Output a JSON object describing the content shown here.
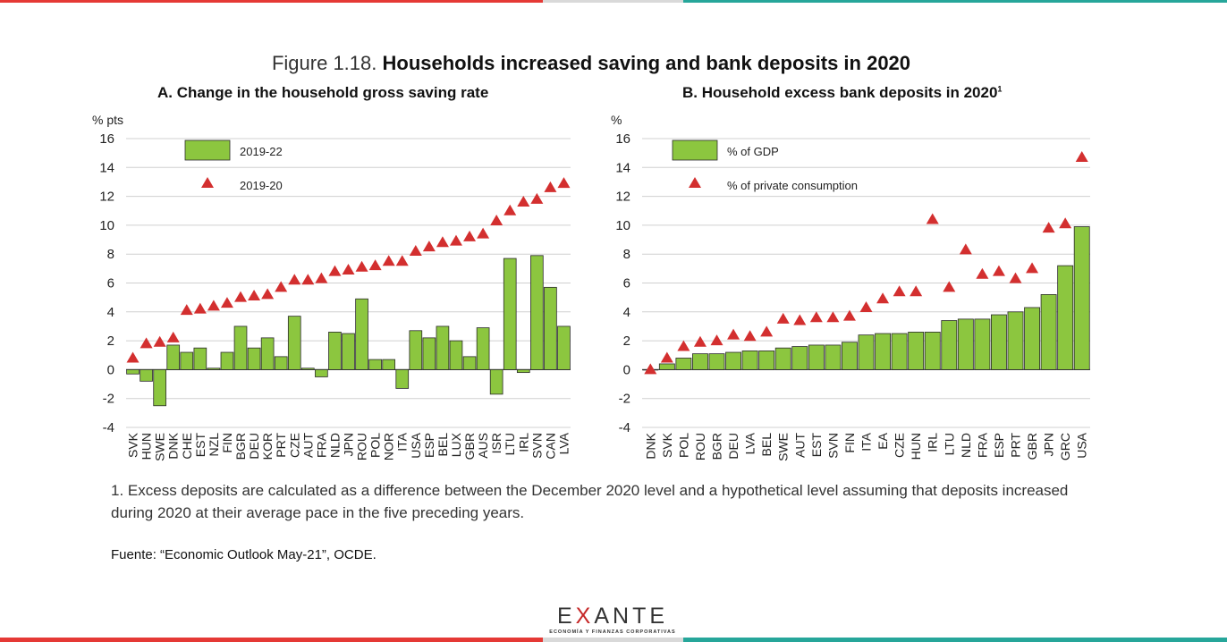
{
  "figure": {
    "label": "Figure 1.18.",
    "title": "Households increased saving and bank deposits in 2020",
    "note": "1. Excess deposits are calculated as a difference between the December 2020 level and a hypothetical level assuming that deposits increased during 2020 at their average pace in the five preceding years.",
    "source": "Fuente: “Economic Outlook May-21”, OCDE."
  },
  "logo": {
    "pre": "E",
    "x": "X",
    "post": "ANTE",
    "tagline": "ECONOMÍA Y FINANZAS CORPORATIVAS"
  },
  "colors": {
    "bar": "#8cc63f",
    "bar_stroke": "#2b2b2b",
    "marker": "#d32f2f",
    "grid": "#d0d0d0",
    "top_red": "#e53935",
    "top_teal": "#26a69a",
    "top_gray": "#d9d9d9"
  },
  "chart_data": [
    {
      "type": "bar",
      "title": "A. Change in the household gross saving rate",
      "ylabel": "% pts",
      "ylim": [
        -4,
        16
      ],
      "yticks": [
        -4,
        -2,
        0,
        2,
        4,
        6,
        8,
        10,
        12,
        14,
        16
      ],
      "legend": [
        "2019-22",
        "2019-20"
      ],
      "categories": [
        "SVK",
        "HUN",
        "SWE",
        "DNK",
        "CHE",
        "EST",
        "NZL",
        "FIN",
        "BGR",
        "DEU",
        "KOR",
        "PRT",
        "CZE",
        "AUT",
        "FRA",
        "NLD",
        "JPN",
        "ROU",
        "POL",
        "NOR",
        "ITA",
        "USA",
        "ESP",
        "BEL",
        "LUX",
        "GBR",
        "AUS",
        "ISR",
        "LTU",
        "IRL",
        "SVN",
        "CAN",
        "LVA"
      ],
      "series": [
        {
          "name": "2019-22",
          "kind": "bar",
          "values": [
            -0.3,
            -0.8,
            -2.5,
            1.7,
            1.2,
            1.5,
            0.1,
            1.2,
            3.0,
            1.5,
            2.2,
            0.9,
            3.7,
            0.1,
            -0.5,
            2.6,
            2.5,
            4.9,
            0.7,
            0.7,
            -1.3,
            2.7,
            2.2,
            3.0,
            2.0,
            0.9,
            2.9,
            -1.7,
            7.7,
            -0.2,
            7.9,
            5.7,
            3.0
          ]
        },
        {
          "name": "2019-20",
          "kind": "marker",
          "values": [
            0.8,
            1.8,
            1.9,
            2.2,
            4.1,
            4.2,
            4.4,
            4.6,
            5.0,
            5.1,
            5.2,
            5.7,
            6.2,
            6.2,
            6.3,
            6.8,
            6.9,
            7.1,
            7.2,
            7.5,
            7.5,
            8.2,
            8.5,
            8.8,
            8.9,
            9.2,
            9.4,
            10.3,
            11.0,
            11.6,
            11.8,
            12.6,
            12.9
          ]
        }
      ]
    },
    {
      "type": "bar",
      "title": "B. Household excess bank deposits in 2020",
      "title_sup": "1",
      "ylabel": "%",
      "ylim": [
        -4,
        16
      ],
      "yticks": [
        -4,
        -2,
        0,
        2,
        4,
        6,
        8,
        10,
        12,
        14,
        16
      ],
      "legend": [
        "% of GDP",
        "% of private consumption"
      ],
      "categories": [
        "DNK",
        "SVK",
        "POL",
        "ROU",
        "BGR",
        "DEU",
        "LVA",
        "BEL",
        "SWE",
        "AUT",
        "EST",
        "SVN",
        "FIN",
        "ITA",
        "EA",
        "CZE",
        "HUN",
        "IRL",
        "LTU",
        "NLD",
        "FRA",
        "ESP",
        "PRT",
        "GBR",
        "JPN",
        "GRC",
        "USA"
      ],
      "series": [
        {
          "name": "% of GDP",
          "kind": "bar",
          "values": [
            0.0,
            0.4,
            0.8,
            1.1,
            1.1,
            1.2,
            1.3,
            1.3,
            1.5,
            1.6,
            1.7,
            1.7,
            1.9,
            2.4,
            2.5,
            2.5,
            2.6,
            2.6,
            3.4,
            3.5,
            3.5,
            3.8,
            4.0,
            4.3,
            5.2,
            7.2,
            9.9
          ]
        },
        {
          "name": "% of private consumption",
          "kind": "marker",
          "values": [
            0.0,
            0.8,
            1.6,
            1.9,
            2.0,
            2.4,
            2.3,
            2.6,
            3.5,
            3.4,
            3.6,
            3.6,
            3.7,
            4.3,
            4.9,
            5.4,
            5.4,
            10.4,
            5.7,
            8.3,
            6.6,
            6.8,
            6.3,
            7.0,
            9.8,
            10.1,
            14.7
          ]
        }
      ]
    }
  ]
}
